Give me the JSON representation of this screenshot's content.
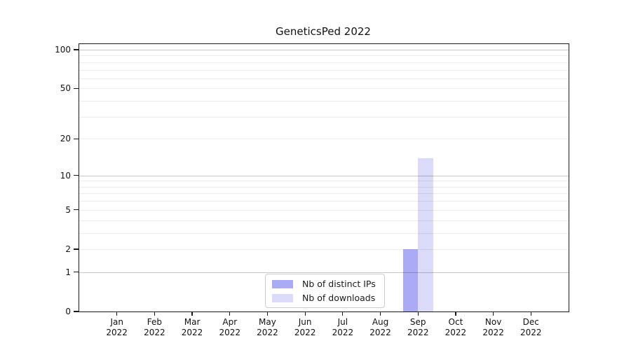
{
  "title": "GeneticsPed 2022",
  "chart_data": {
    "type": "bar",
    "title": "GeneticsPed 2022",
    "categories": [
      "Jan 2022",
      "Feb 2022",
      "Mar 2022",
      "Apr 2022",
      "May 2022",
      "Jun 2022",
      "Jul 2022",
      "Aug 2022",
      "Sep 2022",
      "Oct 2022",
      "Nov 2022",
      "Dec 2022"
    ],
    "series": [
      {
        "name": "Nb of distinct IPs",
        "color": "#aaaaf5",
        "values": [
          0,
          0,
          0,
          0,
          0,
          0,
          0,
          0,
          2,
          0,
          0,
          0
        ]
      },
      {
        "name": "Nb of downloads",
        "color": "#dbdbf9",
        "values": [
          0,
          0,
          0,
          0,
          0,
          0,
          0,
          0,
          14,
          0,
          0,
          0
        ]
      }
    ],
    "xlabel": "",
    "ylabel": "",
    "yscale": "log1p",
    "ylim": [
      0,
      110
    ],
    "yticks": [
      0,
      1,
      2,
      5,
      10,
      20,
      50,
      100
    ],
    "ytick_labels": [
      "0",
      "1",
      "2",
      "5",
      "10",
      "20",
      "50",
      "100"
    ],
    "grid": {
      "on": true,
      "major_at": [
        1,
        10,
        100
      ],
      "minor_at": [
        2,
        3,
        4,
        5,
        6,
        7,
        8,
        9,
        20,
        30,
        40,
        50,
        60,
        70,
        80,
        90
      ]
    },
    "legend": {
      "position": "lower center",
      "entries": [
        "Nb of distinct IPs",
        "Nb of downloads"
      ]
    }
  }
}
